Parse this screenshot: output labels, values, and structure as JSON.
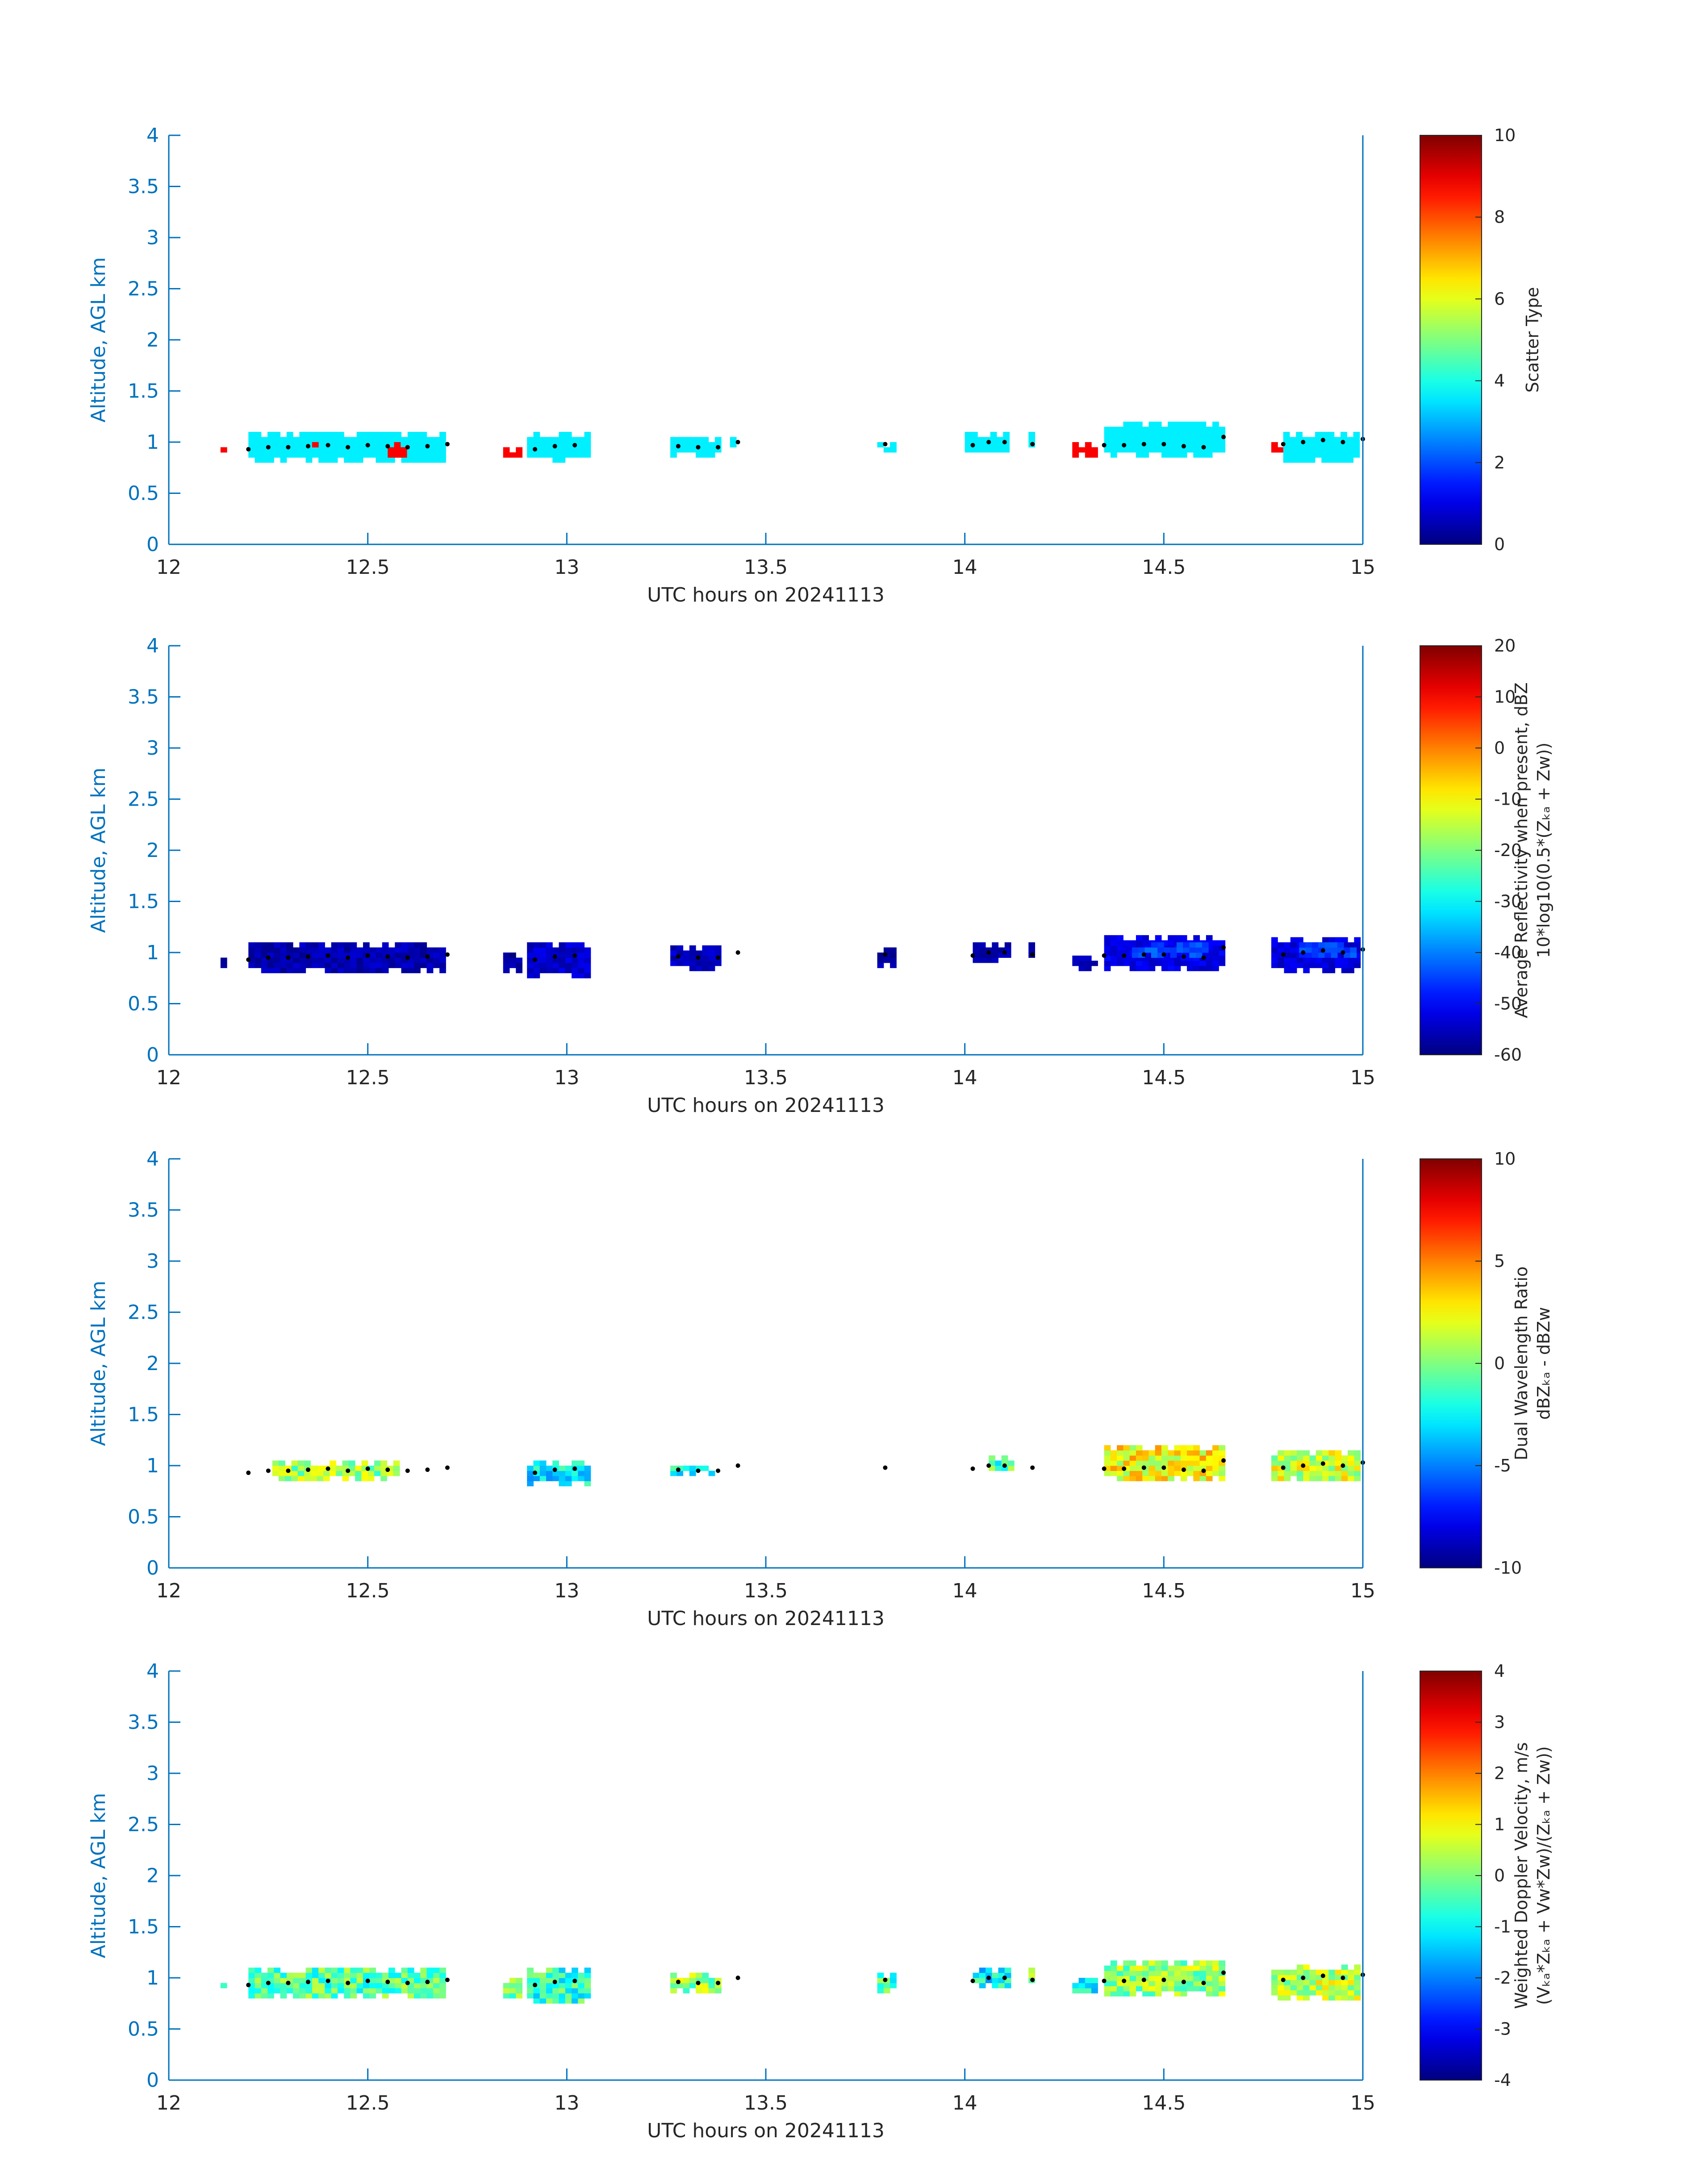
{
  "chart_data": [
    {
      "type": "heatmap",
      "xlabel": "UTC hours on 20241113",
      "ylabel": "Altitude, AGL km",
      "xlim": [
        12,
        15
      ],
      "ylim": [
        0,
        4
      ],
      "xticks": [
        "12",
        "12.5",
        "13",
        "13.5",
        "14",
        "14.5",
        "15"
      ],
      "yticks": [
        "0",
        "0.5",
        "1",
        "1.5",
        "2",
        "2.5",
        "3",
        "3.5",
        "4"
      ],
      "colorbar": {
        "label_lines": [
          "Scatter Type"
        ],
        "lim": [
          0,
          10
        ],
        "ticks": [
          "0",
          "2",
          "4",
          "6",
          "8",
          "10"
        ]
      },
      "colormap": "jet",
      "clusters": [
        {
          "x": [
            12.13,
            12.15
          ],
          "y": [
            0.85,
            0.95
          ],
          "value": 8.8
        },
        {
          "x": [
            12.2,
            12.7
          ],
          "y": [
            0.8,
            1.1
          ],
          "value": 3.6
        },
        {
          "x": [
            12.36,
            12.38
          ],
          "y": [
            0.9,
            1.0
          ],
          "value": 8.8
        },
        {
          "x": [
            12.55,
            12.6
          ],
          "y": [
            0.85,
            1.0
          ],
          "value": 8.8
        },
        {
          "x": [
            12.84,
            12.88
          ],
          "y": [
            0.85,
            0.95
          ],
          "value": 8.8
        },
        {
          "x": [
            12.9,
            13.06
          ],
          "y": [
            0.8,
            1.1
          ],
          "value": 3.6
        },
        {
          "x": [
            13.26,
            13.38
          ],
          "y": [
            0.85,
            1.05
          ],
          "value": 3.6
        },
        {
          "x": [
            13.41,
            13.43
          ],
          "y": [
            0.95,
            1.1
          ],
          "value": 3.6
        },
        {
          "x": [
            13.78,
            13.82
          ],
          "y": [
            0.9,
            1.0
          ],
          "value": 3.6
        },
        {
          "x": [
            14.0,
            14.12
          ],
          "y": [
            0.9,
            1.1
          ],
          "value": 3.6
        },
        {
          "x": [
            14.16,
            14.18
          ],
          "y": [
            0.95,
            1.1
          ],
          "value": 3.6
        },
        {
          "x": [
            14.27,
            14.34
          ],
          "y": [
            0.85,
            1.0
          ],
          "value": 8.8
        },
        {
          "x": [
            14.35,
            14.66
          ],
          "y": [
            0.85,
            1.2
          ],
          "value": 3.6
        },
        {
          "x": [
            14.77,
            14.8
          ],
          "y": [
            0.9,
            1.0
          ],
          "value": 8.8
        },
        {
          "x": [
            14.8,
            15.0
          ],
          "y": [
            0.8,
            1.1
          ],
          "value": 3.6
        }
      ],
      "dot_series": [
        [
          12.2,
          0.93
        ],
        [
          12.25,
          0.95
        ],
        [
          12.3,
          0.95
        ],
        [
          12.35,
          0.96
        ],
        [
          12.4,
          0.97
        ],
        [
          12.45,
          0.95
        ],
        [
          12.5,
          0.97
        ],
        [
          12.55,
          0.96
        ],
        [
          12.6,
          0.95
        ],
        [
          12.65,
          0.96
        ],
        [
          12.7,
          0.98
        ],
        [
          12.92,
          0.93
        ],
        [
          12.97,
          0.96
        ],
        [
          13.02,
          0.97
        ],
        [
          13.28,
          0.96
        ],
        [
          13.33,
          0.95
        ],
        [
          13.38,
          0.95
        ],
        [
          13.43,
          1.0
        ],
        [
          13.8,
          0.98
        ],
        [
          14.02,
          0.97
        ],
        [
          14.06,
          1.0
        ],
        [
          14.1,
          1.0
        ],
        [
          14.17,
          0.98
        ],
        [
          14.35,
          0.97
        ],
        [
          14.4,
          0.97
        ],
        [
          14.45,
          0.98
        ],
        [
          14.5,
          0.98
        ],
        [
          14.55,
          0.96
        ],
        [
          14.6,
          0.95
        ],
        [
          14.65,
          1.05
        ],
        [
          14.8,
          0.98
        ],
        [
          14.85,
          1.0
        ],
        [
          14.9,
          1.02
        ],
        [
          14.95,
          1.0
        ],
        [
          15.0,
          1.03
        ]
      ]
    },
    {
      "type": "heatmap",
      "xlabel": "UTC hours on 20241113",
      "ylabel": "Altitude, AGL km",
      "xlim": [
        12,
        15
      ],
      "ylim": [
        0,
        4
      ],
      "xticks": [
        "12",
        "12.5",
        "13",
        "13.5",
        "14",
        "14.5",
        "15"
      ],
      "yticks": [
        "0",
        "0.5",
        "1",
        "1.5",
        "2",
        "2.5",
        "3",
        "3.5",
        "4"
      ],
      "colorbar": {
        "label_lines": [
          "Average Reflectivity when present, dBZ",
          "10*log10(0.5*(Zₖₐ + Zᴡ))"
        ],
        "lim": [
          -60,
          20
        ],
        "ticks": [
          "-60",
          "-50",
          "-40",
          "-30",
          "-20",
          "-10",
          "0",
          "10",
          "20"
        ]
      },
      "colormap": "jet",
      "clusters": [
        {
          "x": [
            12.13,
            12.15
          ],
          "y": [
            0.85,
            0.98
          ],
          "value": -58
        },
        {
          "x": [
            12.2,
            12.7
          ],
          "y": [
            0.8,
            1.1
          ],
          "value": -56
        },
        {
          "x": [
            12.84,
            12.88
          ],
          "y": [
            0.8,
            0.98
          ],
          "value": -58
        },
        {
          "x": [
            12.9,
            13.06
          ],
          "y": [
            0.75,
            1.1
          ],
          "value": -54
        },
        {
          "x": [
            13.26,
            13.38
          ],
          "y": [
            0.82,
            1.05
          ],
          "value": -55
        },
        {
          "x": [
            13.78,
            13.82
          ],
          "y": [
            0.85,
            1.05
          ],
          "value": -57
        },
        {
          "x": [
            14.02,
            14.12
          ],
          "y": [
            0.9,
            1.12
          ],
          "value": -56
        },
        {
          "x": [
            14.16,
            14.18
          ],
          "y": [
            0.95,
            1.08
          ],
          "value": -58
        },
        {
          "x": [
            14.27,
            14.34
          ],
          "y": [
            0.82,
            0.98
          ],
          "value": -57
        },
        {
          "x": [
            14.35,
            14.66
          ],
          "y": [
            0.82,
            1.18
          ],
          "value": -52
        },
        {
          "x": [
            14.42,
            14.62
          ],
          "y": [
            0.95,
            1.12
          ],
          "value": -44
        },
        {
          "x": [
            14.77,
            15.0
          ],
          "y": [
            0.8,
            1.15
          ],
          "value": -53
        },
        {
          "x": [
            14.84,
            14.98
          ],
          "y": [
            0.95,
            1.08
          ],
          "value": -45
        }
      ],
      "dot_series": [
        [
          12.2,
          0.93
        ],
        [
          12.25,
          0.95
        ],
        [
          12.3,
          0.95
        ],
        [
          12.35,
          0.96
        ],
        [
          12.4,
          0.97
        ],
        [
          12.45,
          0.95
        ],
        [
          12.5,
          0.97
        ],
        [
          12.55,
          0.96
        ],
        [
          12.6,
          0.95
        ],
        [
          12.65,
          0.96
        ],
        [
          12.7,
          0.98
        ],
        [
          12.92,
          0.93
        ],
        [
          12.97,
          0.96
        ],
        [
          13.02,
          0.97
        ],
        [
          13.28,
          0.96
        ],
        [
          13.33,
          0.95
        ],
        [
          13.38,
          0.95
        ],
        [
          13.43,
          1.0
        ],
        [
          13.8,
          0.98
        ],
        [
          14.02,
          0.97
        ],
        [
          14.06,
          1.0
        ],
        [
          14.1,
          1.0
        ],
        [
          14.17,
          0.98
        ],
        [
          14.35,
          0.97
        ],
        [
          14.4,
          0.97
        ],
        [
          14.45,
          0.98
        ],
        [
          14.5,
          0.98
        ],
        [
          14.55,
          0.96
        ],
        [
          14.6,
          0.95
        ],
        [
          14.65,
          1.05
        ],
        [
          14.8,
          0.98
        ],
        [
          14.85,
          1.0
        ],
        [
          14.9,
          1.02
        ],
        [
          14.95,
          1.0
        ],
        [
          15.0,
          1.03
        ]
      ]
    },
    {
      "type": "heatmap",
      "xlabel": "UTC hours on 20241113",
      "ylabel": "Altitude, AGL km",
      "xlim": [
        12,
        15
      ],
      "ylim": [
        0,
        4
      ],
      "xticks": [
        "12",
        "12.5",
        "13",
        "13.5",
        "14",
        "14.5",
        "15"
      ],
      "yticks": [
        "0",
        "0.5",
        "1",
        "1.5",
        "2",
        "2.5",
        "3",
        "3.5",
        "4"
      ],
      "colorbar": {
        "label_lines": [
          "Dual Wavelength Ratio",
          "dBZₖₐ - dBZᴡ"
        ],
        "lim": [
          -10,
          10
        ],
        "ticks": [
          "-10",
          "-5",
          "0",
          "5",
          "10"
        ]
      },
      "colormap": "jet",
      "clusters": [
        {
          "x": [
            12.26,
            12.58
          ],
          "y": [
            0.85,
            1.05
          ],
          "value": 0.5
        },
        {
          "x": [
            12.9,
            13.06
          ],
          "y": [
            0.8,
            1.05
          ],
          "value": -3.0
        },
        {
          "x": [
            13.26,
            13.38
          ],
          "y": [
            0.9,
            1.0
          ],
          "value": -2.0
        },
        {
          "x": [
            14.06,
            14.12
          ],
          "y": [
            0.95,
            1.1
          ],
          "value": -1.0
        },
        {
          "x": [
            14.35,
            14.66
          ],
          "y": [
            0.85,
            1.18
          ],
          "value": 2.5
        },
        {
          "x": [
            14.77,
            15.0
          ],
          "y": [
            0.85,
            1.15
          ],
          "value": 1.5
        }
      ],
      "dot_series": [
        [
          12.2,
          0.93
        ],
        [
          12.25,
          0.95
        ],
        [
          12.3,
          0.95
        ],
        [
          12.35,
          0.96
        ],
        [
          12.4,
          0.97
        ],
        [
          12.45,
          0.95
        ],
        [
          12.5,
          0.97
        ],
        [
          12.55,
          0.96
        ],
        [
          12.6,
          0.95
        ],
        [
          12.65,
          0.96
        ],
        [
          12.7,
          0.98
        ],
        [
          12.92,
          0.93
        ],
        [
          12.97,
          0.96
        ],
        [
          13.02,
          0.97
        ],
        [
          13.28,
          0.96
        ],
        [
          13.33,
          0.95
        ],
        [
          13.38,
          0.95
        ],
        [
          13.43,
          1.0
        ],
        [
          13.8,
          0.98
        ],
        [
          14.02,
          0.97
        ],
        [
          14.06,
          1.0
        ],
        [
          14.1,
          1.0
        ],
        [
          14.17,
          0.98
        ],
        [
          14.35,
          0.97
        ],
        [
          14.4,
          0.97
        ],
        [
          14.45,
          0.98
        ],
        [
          14.5,
          0.98
        ],
        [
          14.55,
          0.96
        ],
        [
          14.6,
          0.95
        ],
        [
          14.65,
          1.05
        ],
        [
          14.8,
          0.98
        ],
        [
          14.85,
          1.0
        ],
        [
          14.9,
          1.02
        ],
        [
          14.95,
          1.0
        ],
        [
          15.0,
          1.03
        ]
      ]
    },
    {
      "type": "heatmap",
      "xlabel": "UTC hours on 20241113",
      "ylabel": "Altitude, AGL km",
      "xlim": [
        12,
        15
      ],
      "ylim": [
        0,
        4
      ],
      "xticks": [
        "12",
        "12.5",
        "13",
        "13.5",
        "14",
        "14.5",
        "15"
      ],
      "yticks": [
        "0",
        "0.5",
        "1",
        "1.5",
        "2",
        "2.5",
        "3",
        "3.5",
        "4"
      ],
      "colorbar": {
        "label_lines": [
          "Weighted Doppler Velocity, m/s",
          "(Vₖₐ*Zₖₐ + Vᴡ*Zᴡ)/(Zₖₐ + Zᴡ))"
        ],
        "lim": [
          -4,
          4
        ],
        "ticks": [
          "-4",
          "-3",
          "-2",
          "-1",
          "0",
          "1",
          "2",
          "3",
          "4"
        ]
      },
      "colormap": "jet",
      "clusters": [
        {
          "x": [
            12.13,
            12.15
          ],
          "y": [
            0.85,
            0.98
          ],
          "value": -1.0
        },
        {
          "x": [
            12.2,
            12.7
          ],
          "y": [
            0.8,
            1.1
          ],
          "value": -0.3
        },
        {
          "x": [
            12.84,
            12.88
          ],
          "y": [
            0.8,
            0.98
          ],
          "value": 0.0
        },
        {
          "x": [
            12.9,
            13.06
          ],
          "y": [
            0.75,
            1.1
          ],
          "value": -0.6
        },
        {
          "x": [
            13.26,
            13.38
          ],
          "y": [
            0.85,
            1.05
          ],
          "value": 0.2
        },
        {
          "x": [
            13.78,
            13.82
          ],
          "y": [
            0.85,
            1.05
          ],
          "value": -0.5
        },
        {
          "x": [
            14.02,
            14.12
          ],
          "y": [
            0.9,
            1.12
          ],
          "value": -1.0
        },
        {
          "x": [
            14.16,
            14.18
          ],
          "y": [
            0.95,
            1.08
          ],
          "value": 0.3
        },
        {
          "x": [
            14.27,
            14.34
          ],
          "y": [
            0.85,
            0.98
          ],
          "value": -1.0
        },
        {
          "x": [
            14.35,
            14.66
          ],
          "y": [
            0.82,
            1.18
          ],
          "value": 0.2
        },
        {
          "x": [
            14.77,
            15.0
          ],
          "y": [
            0.78,
            1.15
          ],
          "value": 0.5
        }
      ],
      "dot_series": [
        [
          12.2,
          0.93
        ],
        [
          12.25,
          0.95
        ],
        [
          12.3,
          0.95
        ],
        [
          12.35,
          0.96
        ],
        [
          12.4,
          0.97
        ],
        [
          12.45,
          0.95
        ],
        [
          12.5,
          0.97
        ],
        [
          12.55,
          0.96
        ],
        [
          12.6,
          0.95
        ],
        [
          12.65,
          0.96
        ],
        [
          12.7,
          0.98
        ],
        [
          12.92,
          0.93
        ],
        [
          12.97,
          0.96
        ],
        [
          13.02,
          0.97
        ],
        [
          13.28,
          0.96
        ],
        [
          13.33,
          0.95
        ],
        [
          13.38,
          0.95
        ],
        [
          13.43,
          1.0
        ],
        [
          13.8,
          0.98
        ],
        [
          14.02,
          0.97
        ],
        [
          14.06,
          1.0
        ],
        [
          14.1,
          1.0
        ],
        [
          14.17,
          0.98
        ],
        [
          14.35,
          0.97
        ],
        [
          14.4,
          0.97
        ],
        [
          14.45,
          0.98
        ],
        [
          14.5,
          0.98
        ],
        [
          14.55,
          0.96
        ],
        [
          14.6,
          0.95
        ],
        [
          14.65,
          1.05
        ],
        [
          14.8,
          0.98
        ],
        [
          14.85,
          1.0
        ],
        [
          14.9,
          1.02
        ],
        [
          14.95,
          1.0
        ],
        [
          15.0,
          1.03
        ]
      ]
    }
  ],
  "colors": {
    "axis": "#0072BD",
    "text": "#262626",
    "dot": "#000000"
  }
}
